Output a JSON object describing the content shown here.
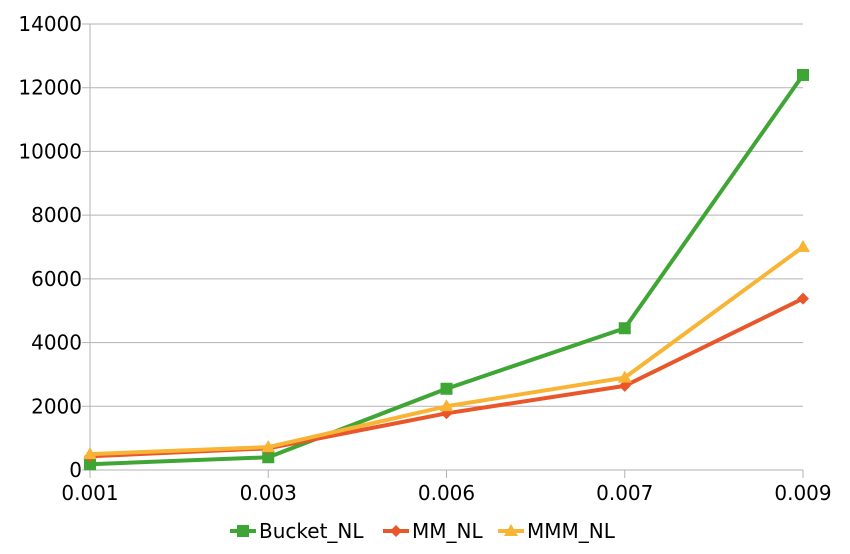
{
  "chart_data": {
    "type": "line",
    "title": "",
    "xlabel": "",
    "ylabel": "",
    "categories": [
      "0.001",
      "0.003",
      "0.006",
      "0.007",
      "0.009"
    ],
    "ylim": [
      0,
      14000
    ],
    "yticks": [
      "0",
      "2000",
      "4000",
      "6000",
      "8000",
      "10000",
      "12000",
      "14000"
    ],
    "grid": true,
    "legend_position": "bottom",
    "series": [
      {
        "name": "Bucket_NL",
        "color": "#3fa535",
        "marker": "square",
        "values": [
          180,
          400,
          2550,
          4450,
          12400
        ]
      },
      {
        "name": "MM_NL",
        "color": "#e8562a",
        "marker": "diamond",
        "values": [
          430,
          680,
          1780,
          2640,
          5380
        ]
      },
      {
        "name": "MMM_NL",
        "color": "#f8b434",
        "marker": "triangle",
        "values": [
          500,
          720,
          2000,
          2900,
          7000
        ]
      }
    ]
  }
}
